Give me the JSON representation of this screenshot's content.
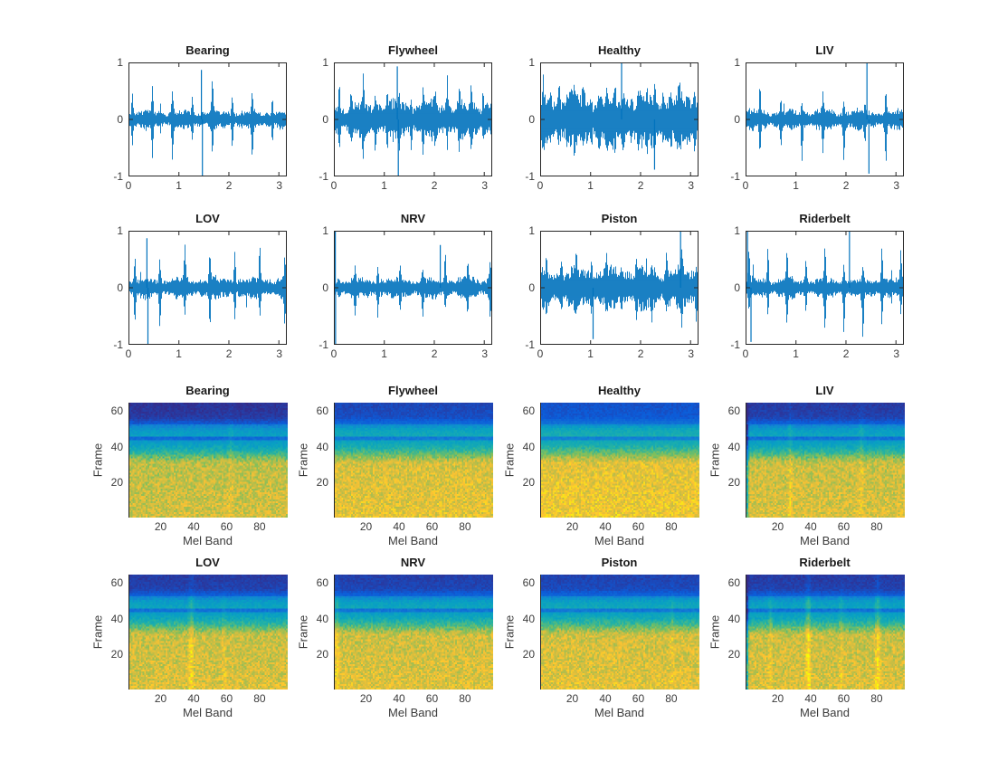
{
  "figure": {
    "background": "#ffffff",
    "axis_color": "#262626",
    "tick_label_color": "#3b3b3b",
    "title_color": "#1a1a1a",
    "waveform_color": "#0072BD"
  },
  "chart_data": {
    "type": "multi-panel",
    "layout": {
      "rows": 4,
      "cols": 4,
      "grid": "rows 1-2: time-domain waveforms, rows 3-4: mel spectrograms",
      "legend": "none",
      "grid_lines": "off"
    },
    "parula_stops": [
      [
        0,
        "#352a87"
      ],
      [
        0.125,
        "#0c5bd8"
      ],
      [
        0.25,
        "#1380d4"
      ],
      [
        0.375,
        "#07a0c3"
      ],
      [
        0.5,
        "#22b2a5"
      ],
      [
        0.625,
        "#7cbf5d"
      ],
      [
        0.75,
        "#c5bd45"
      ],
      [
        0.875,
        "#fdc232"
      ],
      [
        1,
        "#f7fb07"
      ]
    ],
    "spectrogram_profile": [
      [
        1,
        30,
        0.8,
        0.76
      ],
      [
        31,
        36,
        0.76,
        0.55
      ],
      [
        37,
        40,
        0.52,
        0.42
      ],
      [
        41,
        43,
        0.4,
        0.36
      ],
      [
        44,
        45,
        0.2,
        0.2
      ],
      [
        46,
        49,
        0.4,
        0.36
      ],
      [
        50,
        52,
        0.34,
        0.26
      ],
      [
        53,
        56,
        0.14,
        0.07
      ],
      [
        57,
        64,
        0.06,
        0.04
      ]
    ],
    "charts": [
      {
        "kind": "waveform",
        "type": "line",
        "title": "Bearing",
        "xlim": [
          0,
          3.15
        ],
        "ylim": [
          -1,
          1
        ],
        "xticks": [
          0,
          1,
          2,
          3
        ],
        "yticks": [
          -1,
          0,
          1
        ],
        "seed": 11,
        "base": 0.15,
        "period": 0.4,
        "phase": 0.07,
        "impulse": 0.5,
        "up": 1,
        "down": 1,
        "extremes": [
          [
            1.47,
            -1.0
          ],
          [
            1.45,
            0.87
          ]
        ]
      },
      {
        "kind": "waveform",
        "type": "line",
        "title": "Flywheel",
        "xlim": [
          0,
          3.15
        ],
        "ylim": [
          -1,
          1
        ],
        "xticks": [
          0,
          1,
          2,
          3
        ],
        "yticks": [
          -1,
          0,
          1
        ],
        "seed": 22,
        "base": 0.3,
        "period": 0.24,
        "phase": 0.1,
        "impulse": 0.33,
        "up": 1,
        "down": 1,
        "extremes": [
          [
            1.28,
            -1.0
          ],
          [
            1.26,
            0.93
          ]
        ]
      },
      {
        "kind": "waveform",
        "type": "line",
        "title": "Healthy",
        "xlim": [
          0,
          3.15
        ],
        "ylim": [
          -1,
          1
        ],
        "xticks": [
          0,
          1,
          2,
          3
        ],
        "yticks": [
          -1,
          0,
          1
        ],
        "seed": 33,
        "base": 0.42,
        "period": 0.16,
        "phase": 0.05,
        "impulse": 0.22,
        "up": 1,
        "down": 1,
        "extremes": [
          [
            1.62,
            1.0
          ],
          [
            2.28,
            -0.88
          ]
        ]
      },
      {
        "kind": "waveform",
        "type": "line",
        "title": "LIV",
        "xlim": [
          0,
          3.15
        ],
        "ylim": [
          -1,
          1
        ],
        "xticks": [
          0,
          1,
          2,
          3
        ],
        "yticks": [
          -1,
          0,
          1
        ],
        "seed": 44,
        "base": 0.16,
        "period": 0.42,
        "phase": 0.28,
        "impulse": 0.4,
        "up": 0.9,
        "down": 1.5,
        "extremes": [
          [
            2.42,
            1.0
          ],
          [
            2.46,
            -0.95
          ]
        ]
      },
      {
        "kind": "waveform",
        "type": "line",
        "title": "LOV",
        "xlim": [
          0,
          3.15
        ],
        "ylim": [
          -1,
          1
        ],
        "xticks": [
          0,
          1,
          2,
          3
        ],
        "yticks": [
          -1,
          0,
          1
        ],
        "seed": 55,
        "base": 0.17,
        "period": 0.5,
        "phase": 0.12,
        "impulse": 0.5,
        "up": 1,
        "down": 1,
        "extremes": [
          [
            0.38,
            -1.0
          ],
          [
            0.36,
            0.87
          ]
        ]
      },
      {
        "kind": "waveform",
        "type": "line",
        "title": "NRV",
        "xlim": [
          0,
          3.15
        ],
        "ylim": [
          -1,
          1
        ],
        "xticks": [
          0,
          1,
          2,
          3
        ],
        "yticks": [
          -1,
          0,
          1
        ],
        "seed": 66,
        "base": 0.17,
        "period": 0.45,
        "phase": 0.42,
        "impulse": 0.4,
        "up": 1,
        "down": 1,
        "extremes": [
          [
            0.02,
            1.0
          ],
          [
            0.025,
            -1.0
          ],
          [
            2.12,
            0.75
          ]
        ]
      },
      {
        "kind": "waveform",
        "type": "line",
        "title": "Piston",
        "xlim": [
          0,
          3.15
        ],
        "ylim": [
          -1,
          1
        ],
        "xticks": [
          0,
          1,
          2,
          3
        ],
        "yticks": [
          -1,
          0,
          1
        ],
        "seed": 77,
        "base": 0.33,
        "period": 0.3,
        "phase": 0.12,
        "impulse": 0.28,
        "up": 1,
        "down": 1,
        "extremes": [
          [
            2.8,
            1.0
          ],
          [
            1.05,
            -0.9
          ]
        ]
      },
      {
        "kind": "waveform",
        "type": "line",
        "title": "Riderbelt",
        "xlim": [
          0,
          3.15
        ],
        "ylim": [
          -1,
          1
        ],
        "xticks": [
          0,
          1,
          2,
          3
        ],
        "yticks": [
          -1,
          0,
          1
        ],
        "seed": 88,
        "base": 0.16,
        "period": 0.38,
        "phase": 0.06,
        "impulse": 0.55,
        "up": 1,
        "down": 1,
        "extremes": [
          [
            0.03,
            1.0
          ],
          [
            0.1,
            -0.95
          ],
          [
            2.07,
            1.0
          ]
        ]
      },
      {
        "kind": "mel_spectrogram",
        "type": "heatmap",
        "title": "Bearing",
        "xlabel": "Mel Band",
        "ylabel": "Frame",
        "xticks": [
          20,
          40,
          60,
          80
        ],
        "yticks": [
          20,
          40,
          60
        ],
        "bands": 96,
        "frames": 64,
        "seed": 101,
        "brightness": -0.02,
        "streaks": [
          [
            62,
            1.5,
            0.06
          ]
        ]
      },
      {
        "kind": "mel_spectrogram",
        "type": "heatmap",
        "title": "Flywheel",
        "xlabel": "Mel Band",
        "ylabel": "Frame",
        "xticks": [
          20,
          40,
          60,
          80
        ],
        "yticks": [
          20,
          40,
          60
        ],
        "bands": 96,
        "frames": 64,
        "seed": 102,
        "brightness": 0.03,
        "streaks": []
      },
      {
        "kind": "mel_spectrogram",
        "type": "heatmap",
        "title": "Healthy",
        "xlabel": "Mel Band",
        "ylabel": "Frame",
        "xticks": [
          20,
          40,
          60,
          80
        ],
        "yticks": [
          20,
          40,
          60
        ],
        "bands": 96,
        "frames": 64,
        "seed": 103,
        "brightness": 0.06,
        "streaks": []
      },
      {
        "kind": "mel_spectrogram",
        "type": "heatmap",
        "title": "LIV",
        "xlabel": "Mel Band",
        "ylabel": "Frame",
        "xticks": [
          20,
          40,
          60,
          80
        ],
        "yticks": [
          20,
          40,
          60
        ],
        "bands": 96,
        "frames": 64,
        "seed": 104,
        "brightness": 0,
        "streaks": [
          [
            1,
            0.8,
            -0.3
          ],
          [
            27,
            1.2,
            0.1
          ],
          [
            70,
            1.5,
            0.08
          ]
        ]
      },
      {
        "kind": "mel_spectrogram",
        "type": "heatmap",
        "title": "LOV",
        "xlabel": "Mel Band",
        "ylabel": "Frame",
        "xticks": [
          20,
          40,
          60,
          80
        ],
        "yticks": [
          20,
          40,
          60
        ],
        "bands": 96,
        "frames": 64,
        "seed": 105,
        "brightness": 0,
        "streaks": [
          [
            38,
            1.5,
            0.12
          ],
          [
            58,
            1.2,
            0.06
          ]
        ]
      },
      {
        "kind": "mel_spectrogram",
        "type": "heatmap",
        "title": "NRV",
        "xlabel": "Mel Band",
        "ylabel": "Frame",
        "xticks": [
          20,
          40,
          60,
          80
        ],
        "yticks": [
          20,
          40,
          60
        ],
        "bands": 96,
        "frames": 64,
        "seed": 106,
        "brightness": 0.01,
        "streaks": [
          [
            2,
            1,
            0.12
          ]
        ]
      },
      {
        "kind": "mel_spectrogram",
        "type": "heatmap",
        "title": "Piston",
        "xlabel": "Mel Band",
        "ylabel": "Frame",
        "xticks": [
          20,
          40,
          60,
          80
        ],
        "yticks": [
          20,
          40,
          60
        ],
        "bands": 96,
        "frames": 64,
        "seed": 107,
        "brightness": 0.02,
        "streaks": [
          [
            80,
            1.2,
            0.06
          ]
        ]
      },
      {
        "kind": "mel_spectrogram",
        "type": "heatmap",
        "title": "Riderbelt",
        "xlabel": "Mel Band",
        "ylabel": "Frame",
        "xticks": [
          20,
          40,
          60,
          80
        ],
        "yticks": [
          20,
          40,
          60
        ],
        "bands": 96,
        "frames": 64,
        "seed": 108,
        "brightness": 0,
        "streaks": [
          [
            1,
            0.8,
            -0.3
          ],
          [
            15,
            1.2,
            0.08
          ],
          [
            38,
            1.5,
            0.16
          ],
          [
            58,
            1.2,
            0.08
          ],
          [
            80,
            1.5,
            0.14
          ]
        ]
      }
    ]
  }
}
